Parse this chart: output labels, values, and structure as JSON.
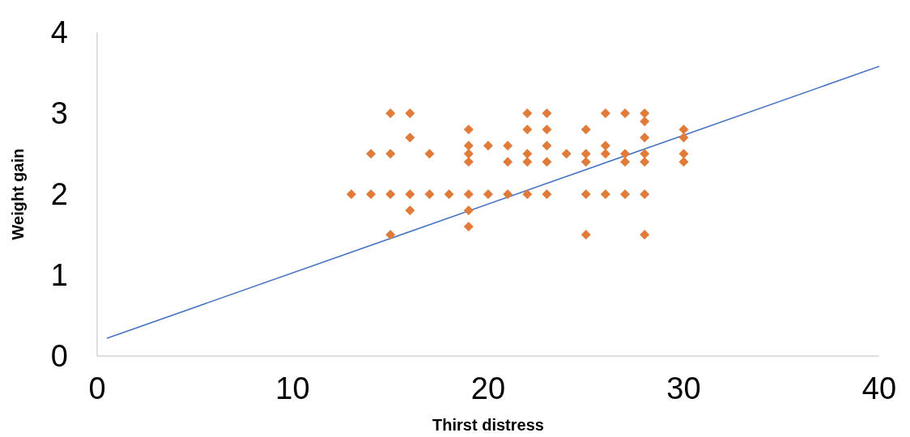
{
  "chart_data": {
    "type": "scatter",
    "xlabel": "Thirst distress",
    "ylabel": "Weight gain",
    "xlim": [
      0,
      40
    ],
    "xticks": [
      0,
      10,
      20,
      30,
      40
    ],
    "ylim": [
      0,
      4
    ],
    "yticks": [
      0,
      1,
      2,
      3,
      4
    ],
    "series": [
      {
        "marker": "diamond",
        "color": "#e07b39",
        "x": [
          13,
          14,
          14,
          15,
          15,
          15,
          15,
          16,
          16,
          16,
          16,
          17,
          17,
          18,
          19,
          19,
          19,
          19,
          19,
          19,
          19,
          20,
          20,
          21,
          21,
          21,
          22,
          22,
          22,
          22,
          22,
          23,
          23,
          23,
          23,
          23,
          24,
          25,
          25,
          25,
          25,
          25,
          26,
          26,
          26,
          26,
          27,
          27,
          27,
          27,
          28,
          28,
          28,
          28,
          28,
          28,
          28,
          30,
          30,
          30,
          30
        ],
        "values": [
          2,
          2.5,
          2,
          3,
          2.5,
          2,
          1.5,
          3,
          2.7,
          2,
          1.8,
          2.5,
          2,
          2,
          2.8,
          2.6,
          2.5,
          2.4,
          2,
          1.8,
          1.6,
          2.6,
          2,
          2.6,
          2.4,
          2,
          3,
          2.8,
          2.5,
          2.4,
          2,
          3,
          2.8,
          2.6,
          2.4,
          2,
          2.5,
          2.8,
          2.5,
          2.4,
          2,
          1.5,
          3,
          2.6,
          2.5,
          2,
          3,
          2.5,
          2.4,
          2,
          3,
          2.9,
          2.7,
          2.5,
          2.4,
          2,
          1.5,
          2.8,
          2.7,
          2.5,
          2.4
        ]
      },
      {
        "type": "line",
        "color": "#4472c4",
        "x": [
          0.5,
          40
        ],
        "values": [
          0.22,
          3.58
        ]
      }
    ]
  }
}
